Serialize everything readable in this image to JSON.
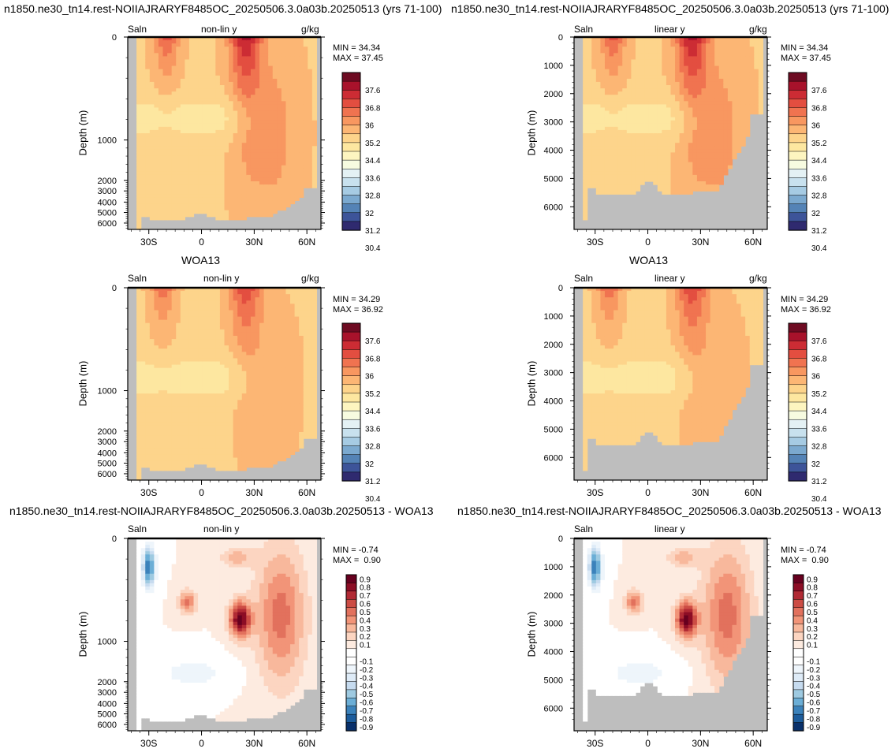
{
  "titles": {
    "model": "n1850.ne30_tn14.rest-NOIIAJRARYF8485OC_20250506.3.0a03b.20250513 (yrs 71-100)",
    "obs": "WOA13",
    "diff": "n1850.ne30_tn14.rest-NOIIAJRARYF8485OC_20250506.3.0a03b.20250513 - WOA13"
  },
  "colors": {
    "land": "#bebebe",
    "full_palette": [
      "#2f2a6f",
      "#3d5499",
      "#5483b6",
      "#7ba9cf",
      "#a6cbe3",
      "#c8e1ee",
      "#e4f1f4",
      "#f7fbe0",
      "#fdf5c0",
      "#fde7a0",
      "#fdd48b",
      "#fcb674",
      "#f89760",
      "#f07350",
      "#e34e40",
      "#cc2c34",
      "#a8122b",
      "#6e0b22"
    ],
    "diff_palette": [
      "#08306b",
      "#1c5c9c",
      "#3b82bb",
      "#6baed6",
      "#9ecae1",
      "#c6dbef",
      "#deebf7",
      "#eef5fb",
      "#ffffff",
      "#ffffff",
      "#fdebe0",
      "#fcd5c1",
      "#f8b89c",
      "#f29478",
      "#e2715d",
      "#cc4c44",
      "#b12a34",
      "#8c0d25",
      "#67001f"
    ]
  },
  "chart_data": [
    {
      "type": "heatmap",
      "panel": "model-nonlinear",
      "field": "Saln",
      "scale": "non-lin y",
      "units": "g/kg",
      "min_label": "MIN = 34.34",
      "max_label": "MAX = 37.45",
      "ylabel": "Depth (m)",
      "ytick_labels": [
        "0",
        "1000",
        "2000",
        "3000",
        "4000",
        "5000",
        "6000"
      ],
      "xtick_labels": [
        "30S",
        "0",
        "30N",
        "60N"
      ],
      "colorbar_labels": [
        "37.6",
        "36.8",
        "36",
        "35.2",
        "34.4",
        "33.6",
        "32.8",
        "32",
        "31.2",
        "30.4"
      ]
    },
    {
      "type": "heatmap",
      "panel": "model-linear",
      "field": "Saln",
      "scale": "linear y",
      "units": "g/kg",
      "min_label": "MIN = 34.34",
      "max_label": "MAX = 37.45",
      "ylabel": "Depth (m)",
      "ytick_labels": [
        "0",
        "1000",
        "2000",
        "3000",
        "4000",
        "5000",
        "6000"
      ],
      "xtick_labels": [
        "30S",
        "0",
        "30N",
        "60N"
      ],
      "colorbar_labels": [
        "37.6",
        "36.8",
        "36",
        "35.2",
        "34.4",
        "33.6",
        "32.8",
        "32",
        "31.2",
        "30.4"
      ]
    },
    {
      "type": "heatmap",
      "panel": "obs-nonlinear",
      "field": "Saln",
      "scale": "non-lin y",
      "units": "g/kg",
      "min_label": "MIN = 34.29",
      "max_label": "MAX = 36.92",
      "ylabel": "Depth (m)",
      "ytick_labels": [
        "0",
        "1000",
        "2000",
        "3000",
        "4000",
        "5000",
        "6000"
      ],
      "xtick_labels": [
        "30S",
        "0",
        "30N",
        "60N"
      ],
      "colorbar_labels": [
        "37.6",
        "36.8",
        "36",
        "35.2",
        "34.4",
        "33.6",
        "32.8",
        "32",
        "31.2",
        "30.4"
      ]
    },
    {
      "type": "heatmap",
      "panel": "obs-linear",
      "field": "Saln",
      "scale": "linear y",
      "units": "g/kg",
      "min_label": "MIN = 34.29",
      "max_label": "MAX = 36.92",
      "ylabel": "Depth (m)",
      "ytick_labels": [
        "0",
        "1000",
        "2000",
        "3000",
        "4000",
        "5000",
        "6000"
      ],
      "xtick_labels": [
        "30S",
        "0",
        "30N",
        "60N"
      ],
      "colorbar_labels": [
        "37.6",
        "36.8",
        "36",
        "35.2",
        "34.4",
        "33.6",
        "32.8",
        "32",
        "31.2",
        "30.4"
      ]
    },
    {
      "type": "heatmap",
      "panel": "diff-nonlinear",
      "field": "Saln",
      "scale": "non-lin y",
      "units": "",
      "min_label": "MIN = -0.74",
      "max_label": "MAX =  0.90",
      "ylabel": "Depth (m)",
      "ytick_labels": [
        "0",
        "1000",
        "2000",
        "3000",
        "4000",
        "5000",
        "6000"
      ],
      "xtick_labels": [
        "30S",
        "0",
        "30N",
        "60N"
      ],
      "colorbar_labels": [
        "0.9",
        "0.8",
        "0.7",
        "0.6",
        "0.5",
        "0.4",
        "0.3",
        "0.2",
        "0.1",
        "-0.1",
        "-0.2",
        "-0.3",
        "-0.4",
        "-0.5",
        "-0.6",
        "-0.7",
        "-0.8",
        "-0.9"
      ]
    },
    {
      "type": "heatmap",
      "panel": "diff-linear",
      "field": "Saln",
      "scale": "linear y",
      "units": "",
      "min_label": "MIN = -0.74",
      "max_label": "MAX =  0.90",
      "ylabel": "Depth (m)",
      "ytick_labels": [
        "0",
        "1000",
        "2000",
        "3000",
        "4000",
        "5000",
        "6000"
      ],
      "xtick_labels": [
        "30S",
        "0",
        "30N",
        "60N"
      ],
      "colorbar_labels": [
        "0.9",
        "0.8",
        "0.7",
        "0.6",
        "0.5",
        "0.4",
        "0.3",
        "0.2",
        "0.1",
        "-0.1",
        "-0.2",
        "-0.3",
        "-0.4",
        "-0.5",
        "-0.6",
        "-0.7",
        "-0.8",
        "-0.9"
      ]
    }
  ]
}
